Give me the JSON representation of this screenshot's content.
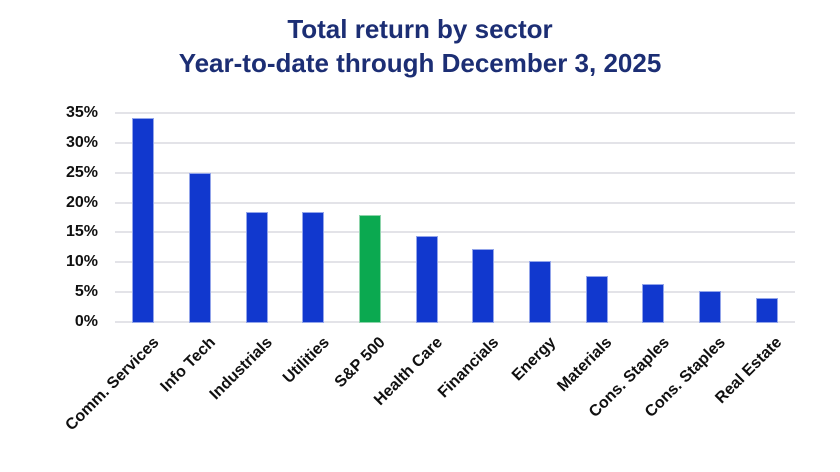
{
  "chart_data": {
    "type": "bar",
    "title": "Total return by sector",
    "subtitle": "Year-to-date through December 3, 2025",
    "categories": [
      "Comm. Services",
      "Info Tech",
      "Industrials",
      "Utilities",
      "S&P 500",
      "Health Care",
      "Financials",
      "Energy",
      "Materials",
      "Cons. Staples",
      "Cons. Staples",
      "Real Estate"
    ],
    "values": [
      34,
      24.8,
      18.2,
      18.2,
      17.7,
      14.3,
      12.1,
      10.1,
      7.6,
      6.2,
      5,
      3.8
    ],
    "highlight_category": "S&P 500",
    "highlight_index": 4,
    "xlabel": "",
    "ylabel": "",
    "y_ticks": [
      "0%",
      "5%",
      "10%",
      "15%",
      "20%",
      "25%",
      "30%",
      "35%"
    ],
    "ylim": [
      0,
      35
    ],
    "grid": true,
    "legend": "none",
    "colors": {
      "bar": "#1138ce",
      "bar_edge": "#93a5ea",
      "highlight": "#0ba950",
      "highlight_edge": "#8ed4ab",
      "title": "#1c2e74",
      "gridline": "#e3e3e8",
      "tick_text": "#101010"
    }
  }
}
